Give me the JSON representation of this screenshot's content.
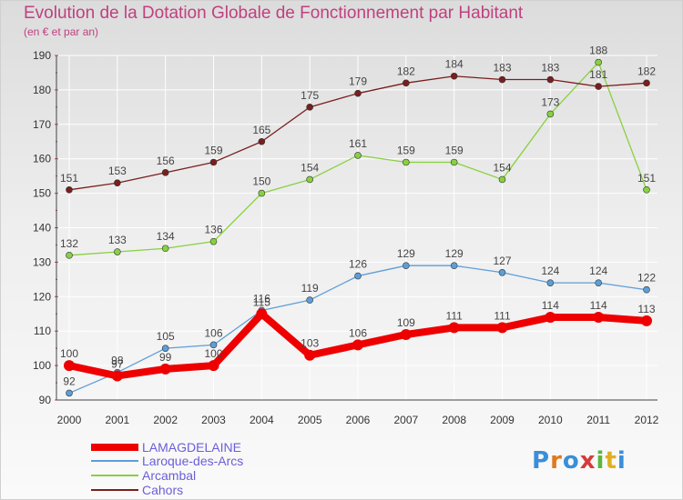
{
  "header": {
    "title": "Evolution de la Dotation Globale de Fonctionnement par Habitant",
    "subtitle": "(en € et par an)"
  },
  "logo": {
    "text": "Proxiti",
    "colors": [
      "#3a8fd8",
      "#e07a1f",
      "#3a8fd8",
      "#d83a3a",
      "#5ab83a",
      "#e0b020",
      "#3a8fd8"
    ]
  },
  "chart_data": {
    "type": "line",
    "title": "Evolution de la Dotation Globale de Fonctionnement par Habitant",
    "subtitle": "(en € et par an)",
    "xlabel": "",
    "ylabel": "",
    "x": [
      "2000",
      "2001",
      "2002",
      "2003",
      "2004",
      "2005",
      "2006",
      "2007",
      "2008",
      "2009",
      "2010",
      "2011",
      "2012"
    ],
    "ylim": [
      90,
      190
    ],
    "yticks": [
      90,
      100,
      110,
      120,
      130,
      140,
      150,
      160,
      170,
      180,
      190
    ],
    "grid": true,
    "legend_position": "bottom-left",
    "series": [
      {
        "name": "LAMAGDELAINE",
        "color": "#ee0000",
        "highlight": true,
        "values": [
          100,
          97,
          99,
          100,
          115,
          103,
          106,
          109,
          111,
          111,
          114,
          114,
          113
        ]
      },
      {
        "name": "Laroque-des-Arcs",
        "color": "#5e9ed8",
        "highlight": false,
        "values": [
          92,
          98,
          105,
          106,
          116,
          119,
          126,
          129,
          129,
          127,
          124,
          124,
          122
        ]
      },
      {
        "name": "Arcambal",
        "color": "#88d040",
        "highlight": false,
        "values": [
          132,
          133,
          134,
          136,
          150,
          154,
          161,
          159,
          159,
          154,
          173,
          188,
          151
        ]
      },
      {
        "name": "Cahors",
        "color": "#7a1e1e",
        "highlight": false,
        "values": [
          151,
          153,
          156,
          159,
          165,
          175,
          179,
          182,
          184,
          183,
          183,
          181,
          182
        ]
      }
    ]
  }
}
